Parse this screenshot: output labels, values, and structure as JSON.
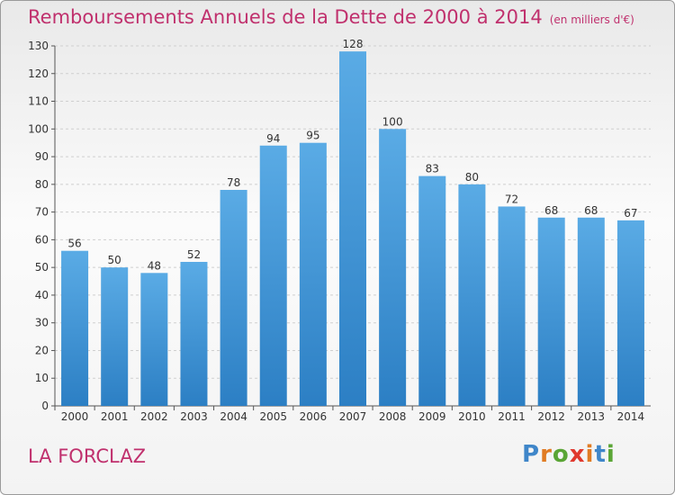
{
  "chart_data": {
    "type": "bar",
    "title": "Remboursements Annuels de la Dette de 2000 à 2014",
    "unit_note": "(en milliers d'€)",
    "categories": [
      "2000",
      "2001",
      "2002",
      "2003",
      "2004",
      "2005",
      "2006",
      "2007",
      "2008",
      "2009",
      "2010",
      "2011",
      "2012",
      "2013",
      "2014"
    ],
    "values": [
      56,
      50,
      48,
      52,
      78,
      94,
      95,
      128,
      100,
      83,
      80,
      72,
      68,
      68,
      67
    ],
    "ylim": [
      0,
      130
    ],
    "yticks": [
      0,
      10,
      20,
      30,
      40,
      50,
      60,
      70,
      80,
      90,
      100,
      110,
      120,
      130
    ],
    "grid": true,
    "bar_color": "#5aabe5",
    "bar_color_bottom": "#2c7fc4"
  },
  "footer": {
    "location": "LA FORCLAZ",
    "brand": "Proxiti"
  }
}
